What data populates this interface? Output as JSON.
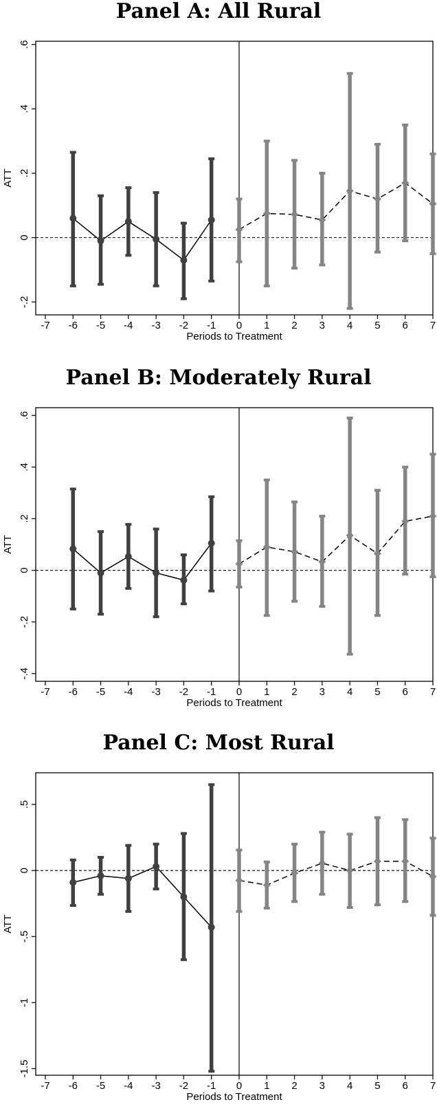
{
  "chart_data": [
    {
      "type": "line",
      "title": "Panel A: All Rural",
      "xlabel": "Periods to Treatment",
      "ylabel": "ATT",
      "xlim": [
        -7,
        7
      ],
      "ylim": [
        -0.24,
        0.61
      ],
      "yticks": [
        -0.2,
        0,
        0.2,
        0.4,
        0.6
      ],
      "ytick_labels": [
        "-.2",
        "0",
        ".2",
        ".4",
        ".6"
      ],
      "xticks": [
        -7,
        -6,
        -5,
        -4,
        -3,
        -2,
        -1,
        0,
        1,
        2,
        3,
        4,
        5,
        6,
        7
      ],
      "xtick_labels": [
        "-7",
        "-6",
        "-5",
        "-4",
        "-3",
        "-2",
        "-1",
        "0",
        "1",
        "2",
        "3",
        "4",
        "5",
        "6",
        "7"
      ],
      "grid": false,
      "reference_lines": {
        "y": 0,
        "x": 0
      },
      "series": [
        {
          "group": "pre",
          "color": "#404040",
          "line_style": "solid",
          "marker": "circle",
          "x": [
            -6,
            -5,
            -4,
            -3,
            -2,
            -1
          ],
          "y": [
            0.06,
            -0.01,
            0.05,
            -0.005,
            -0.07,
            0.055
          ],
          "ci_low": [
            -0.15,
            -0.145,
            -0.055,
            -0.15,
            -0.19,
            -0.135
          ],
          "ci_high": [
            0.265,
            0.13,
            0.155,
            0.14,
            0.045,
            0.245
          ]
        },
        {
          "group": "post",
          "color": "#858585",
          "line_style": "dashed",
          "marker": "diamond",
          "x": [
            0,
            1,
            2,
            3,
            4,
            5,
            6,
            7
          ],
          "y": [
            0.025,
            0.075,
            0.072,
            0.055,
            0.145,
            0.12,
            0.17,
            0.105
          ],
          "ci_low": [
            -0.075,
            -0.15,
            -0.095,
            -0.085,
            -0.22,
            -0.045,
            -0.01,
            -0.05
          ],
          "ci_high": [
            0.12,
            0.3,
            0.24,
            0.2,
            0.51,
            0.29,
            0.35,
            0.26
          ]
        }
      ]
    },
    {
      "type": "line",
      "title": "Panel B: Moderately Rural",
      "xlabel": "Periods to Treatment",
      "ylabel": "ATT",
      "xlim": [
        -7,
        7
      ],
      "ylim": [
        -0.43,
        0.63
      ],
      "yticks": [
        -0.4,
        -0.2,
        0,
        0.2,
        0.4,
        0.6
      ],
      "ytick_labels": [
        "-.4",
        "-.2",
        "0",
        ".2",
        ".4",
        ".6"
      ],
      "xticks": [
        -7,
        -6,
        -5,
        -4,
        -3,
        -2,
        -1,
        0,
        1,
        2,
        3,
        4,
        5,
        6,
        7
      ],
      "xtick_labels": [
        "-7",
        "-6",
        "-5",
        "-4",
        "-3",
        "-2",
        "-1",
        "0",
        "1",
        "2",
        "3",
        "4",
        "5",
        "6",
        "7"
      ],
      "grid": false,
      "reference_lines": {
        "y": 0,
        "x": 0
      },
      "series": [
        {
          "group": "pre",
          "color": "#404040",
          "line_style": "solid",
          "marker": "circle",
          "x": [
            -6,
            -5,
            -4,
            -3,
            -2,
            -1
          ],
          "y": [
            0.083,
            -0.01,
            0.053,
            -0.01,
            -0.038,
            0.105
          ],
          "ci_low": [
            -0.15,
            -0.17,
            -0.07,
            -0.18,
            -0.13,
            -0.08
          ],
          "ci_high": [
            0.315,
            0.15,
            0.178,
            0.16,
            0.06,
            0.285
          ]
        },
        {
          "group": "post",
          "color": "#858585",
          "line_style": "dashed",
          "marker": "diamond",
          "x": [
            0,
            1,
            2,
            3,
            4,
            5,
            6,
            7
          ],
          "y": [
            0.025,
            0.09,
            0.072,
            0.033,
            0.135,
            0.065,
            0.19,
            0.21
          ],
          "ci_low": [
            -0.065,
            -0.175,
            -0.12,
            -0.14,
            -0.325,
            -0.175,
            -0.015,
            -0.025
          ],
          "ci_high": [
            0.115,
            0.35,
            0.265,
            0.21,
            0.59,
            0.31,
            0.4,
            0.45
          ]
        }
      ]
    },
    {
      "type": "line",
      "title": "Panel C: Most Rural",
      "xlabel": "Periods to Treatment",
      "ylabel": "ATT",
      "xlim": [
        -7,
        7
      ],
      "ylim": [
        -1.55,
        0.74
      ],
      "yticks": [
        -1.5,
        -1,
        -0.5,
        0,
        0.5
      ],
      "ytick_labels": [
        "-1.5",
        "-1",
        "-.5",
        "0",
        ".5"
      ],
      "xticks": [
        -7,
        -6,
        -5,
        -4,
        -3,
        -2,
        -1,
        0,
        1,
        2,
        3,
        4,
        5,
        6,
        7
      ],
      "xtick_labels": [
        "-7",
        "-6",
        "-5",
        "-4",
        "-3",
        "-2",
        "-1",
        "0",
        "1",
        "2",
        "3",
        "4",
        "5",
        "6",
        "7"
      ],
      "grid": false,
      "reference_lines": {
        "y": 0,
        "x": 0
      },
      "series": [
        {
          "group": "pre",
          "color": "#404040",
          "line_style": "solid",
          "marker": "circle",
          "x": [
            -6,
            -5,
            -4,
            -3,
            -2,
            -1
          ],
          "y": [
            -0.09,
            -0.04,
            -0.06,
            0.03,
            -0.2,
            -0.43
          ],
          "ci_low": [
            -0.265,
            -0.18,
            -0.31,
            -0.14,
            -0.675,
            -1.52
          ],
          "ci_high": [
            0.08,
            0.1,
            0.19,
            0.2,
            0.28,
            0.65
          ]
        },
        {
          "group": "post",
          "color": "#858585",
          "line_style": "dashed",
          "marker": "diamond",
          "x": [
            0,
            1,
            2,
            3,
            4,
            5,
            6,
            7
          ],
          "y": [
            -0.075,
            -0.11,
            -0.02,
            0.055,
            0.0,
            0.07,
            0.07,
            -0.045
          ],
          "ci_low": [
            -0.31,
            -0.285,
            -0.235,
            -0.18,
            -0.28,
            -0.26,
            -0.235,
            -0.34
          ],
          "ci_high": [
            0.155,
            0.065,
            0.2,
            0.29,
            0.275,
            0.4,
            0.385,
            0.245
          ]
        }
      ]
    }
  ]
}
